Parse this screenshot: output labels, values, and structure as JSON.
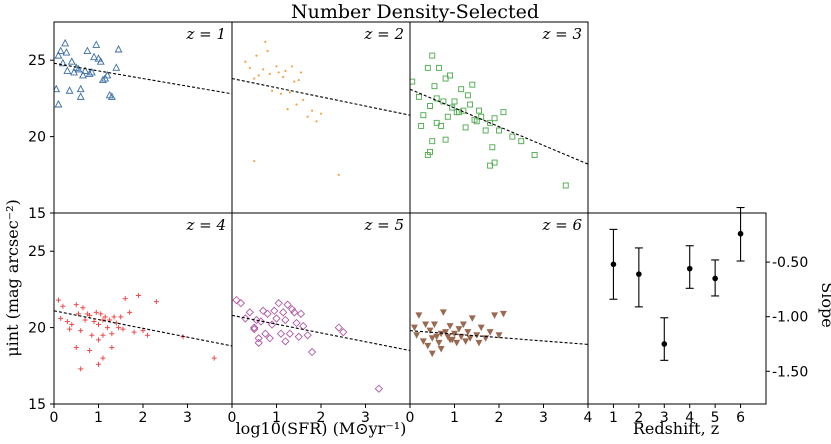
{
  "figure": {
    "title": "Number Density-Selected",
    "ylabel_left": "μint (mag arcsec⁻²)",
    "xlabel_left": "log10(SFR) (M⊙yr⁻¹)",
    "xlabel_right": "Redshift, z",
    "ylabel_right": "Slope"
  },
  "chart_data": [
    {
      "type": "scatter",
      "panel": "z = 1",
      "label": "z = 1",
      "marker": "triangle-up-open",
      "color": "#3a6ea5",
      "xlim": [
        0,
        4
      ],
      "ylim": [
        15,
        27.5
      ],
      "yticks": [
        25,
        20,
        15
      ],
      "xticks": [],
      "points": [
        [
          0.05,
          23.1
        ],
        [
          0.1,
          22.1
        ],
        [
          0.1,
          25.3
        ],
        [
          0.15,
          25.6
        ],
        [
          0.2,
          24.8
        ],
        [
          0.25,
          26.1
        ],
        [
          0.28,
          25.5
        ],
        [
          0.3,
          24.3
        ],
        [
          0.35,
          23.0
        ],
        [
          0.4,
          24.9
        ],
        [
          0.45,
          24.2
        ],
        [
          0.5,
          24.5
        ],
        [
          0.55,
          24.4
        ],
        [
          0.6,
          23.1
        ],
        [
          0.6,
          22.6
        ],
        [
          0.65,
          24.0
        ],
        [
          0.7,
          24.3
        ],
        [
          0.75,
          25.6
        ],
        [
          0.8,
          24.1
        ],
        [
          0.85,
          24.2
        ],
        [
          0.9,
          25.2
        ],
        [
          0.95,
          26.0
        ],
        [
          1.0,
          25.1
        ],
        [
          1.05,
          24.9
        ],
        [
          1.1,
          23.7
        ],
        [
          1.15,
          23.8
        ],
        [
          1.2,
          24.0
        ],
        [
          1.25,
          22.7
        ],
        [
          1.3,
          22.6
        ],
        [
          1.4,
          24.5
        ],
        [
          1.45,
          25.7
        ]
      ],
      "fit": [
        [
          0,
          24.8
        ],
        [
          4,
          22.8
        ]
      ]
    },
    {
      "type": "scatter",
      "panel": "z = 2",
      "label": "z = 2",
      "marker": "dot",
      "color": "#f5a142",
      "xlim": [
        0,
        4
      ],
      "ylim": [
        15,
        27.5
      ],
      "yticks": [],
      "xticks": [],
      "points": [
        [
          0.3,
          24.9
        ],
        [
          0.4,
          24.5
        ],
        [
          0.5,
          23.8
        ],
        [
          0.55,
          25.3
        ],
        [
          0.6,
          24.0
        ],
        [
          0.7,
          24.4
        ],
        [
          0.75,
          26.2
        ],
        [
          0.8,
          25.6
        ],
        [
          0.85,
          24.1
        ],
        [
          0.9,
          23.0
        ],
        [
          1.0,
          24.6
        ],
        [
          1.05,
          24.2
        ],
        [
          1.1,
          22.8
        ],
        [
          1.15,
          23.9
        ],
        [
          1.2,
          24.3
        ],
        [
          1.25,
          21.8
        ],
        [
          1.3,
          22.9
        ],
        [
          1.35,
          24.6
        ],
        [
          1.4,
          23.6
        ],
        [
          1.45,
          22.1
        ],
        [
          1.5,
          23.7
        ],
        [
          1.55,
          24.2
        ],
        [
          1.6,
          22.4
        ],
        [
          1.7,
          21.3
        ],
        [
          1.8,
          21.7
        ],
        [
          1.9,
          21.0
        ],
        [
          2.0,
          21.5
        ],
        [
          0.5,
          18.4
        ],
        [
          2.4,
          17.5
        ]
      ],
      "fit": [
        [
          0,
          23.8
        ],
        [
          4,
          21.4
        ]
      ]
    },
    {
      "type": "scatter",
      "panel": "z = 3",
      "label": "z = 3",
      "marker": "square-open",
      "color": "#4aa84a",
      "xlim": [
        0,
        4
      ],
      "ylim": [
        15,
        27.5
      ],
      "yticks": [],
      "xticks": [],
      "points": [
        [
          0.05,
          23.6
        ],
        [
          0.2,
          22.6
        ],
        [
          0.25,
          20.7
        ],
        [
          0.3,
          21.4
        ],
        [
          0.4,
          24.5
        ],
        [
          0.45,
          22.0
        ],
        [
          0.5,
          25.3
        ],
        [
          0.55,
          23.3
        ],
        [
          0.6,
          22.5
        ],
        [
          0.6,
          20.9
        ],
        [
          0.65,
          24.5
        ],
        [
          0.7,
          20.7
        ],
        [
          0.75,
          22.3
        ],
        [
          0.8,
          23.8
        ],
        [
          0.85,
          21.3
        ],
        [
          0.9,
          24.0
        ],
        [
          0.95,
          21.9
        ],
        [
          1.0,
          22.3
        ],
        [
          1.05,
          21.6
        ],
        [
          1.1,
          21.6
        ],
        [
          1.15,
          23.1
        ],
        [
          1.2,
          21.7
        ],
        [
          1.25,
          20.6
        ],
        [
          1.3,
          22.7
        ],
        [
          1.35,
          22.1
        ],
        [
          1.4,
          23.4
        ],
        [
          1.45,
          21.1
        ],
        [
          1.5,
          21.0
        ],
        [
          1.55,
          21.7
        ],
        [
          1.6,
          21.3
        ],
        [
          1.7,
          20.4
        ],
        [
          1.8,
          20.9
        ],
        [
          1.85,
          19.3
        ],
        [
          1.9,
          21.2
        ],
        [
          2.0,
          20.4
        ],
        [
          2.1,
          21.6
        ],
        [
          2.3,
          20.0
        ],
        [
          2.5,
          19.7
        ],
        [
          0.5,
          19.7
        ],
        [
          0.4,
          18.8
        ],
        [
          0.8,
          19.8
        ],
        [
          0.45,
          19.0
        ],
        [
          1.9,
          18.3
        ],
        [
          1.8,
          18.1
        ],
        [
          3.5,
          16.8
        ],
        [
          2.8,
          18.8
        ]
      ],
      "fit": [
        [
          0,
          23.1
        ],
        [
          4,
          18.2
        ]
      ]
    },
    {
      "type": "scatter",
      "panel": "z = 4",
      "label": "z = 4",
      "marker": "plus",
      "color": "#f04a4a",
      "xlim": [
        0,
        4
      ],
      "ylim": [
        15,
        27.5
      ],
      "yticks": [
        25,
        20,
        15
      ],
      "xticks": [
        0,
        1,
        2,
        3
      ],
      "points": [
        [
          0.1,
          21.8
        ],
        [
          0.15,
          20.6
        ],
        [
          0.2,
          21.4
        ],
        [
          0.3,
          20.4
        ],
        [
          0.35,
          19.9
        ],
        [
          0.4,
          20.2
        ],
        [
          0.5,
          21.5
        ],
        [
          0.55,
          20.9
        ],
        [
          0.6,
          19.8
        ],
        [
          0.65,
          21.3
        ],
        [
          0.7,
          20.5
        ],
        [
          0.75,
          20.9
        ],
        [
          0.8,
          20.8
        ],
        [
          0.85,
          19.5
        ],
        [
          0.9,
          20.4
        ],
        [
          0.95,
          21.0
        ],
        [
          1.0,
          20.2
        ],
        [
          1.0,
          19.2
        ],
        [
          1.05,
          20.9
        ],
        [
          1.1,
          20.5
        ],
        [
          1.1,
          19.5
        ],
        [
          1.15,
          20.7
        ],
        [
          1.2,
          20.0
        ],
        [
          1.25,
          20.5
        ],
        [
          1.3,
          19.6
        ],
        [
          1.3,
          18.7
        ],
        [
          1.35,
          20.7
        ],
        [
          1.4,
          20.3
        ],
        [
          1.45,
          20.0
        ],
        [
          1.5,
          20.7
        ],
        [
          1.55,
          19.9
        ],
        [
          1.6,
          21.9
        ],
        [
          1.7,
          21.0
        ],
        [
          1.8,
          19.7
        ],
        [
          1.9,
          22.1
        ],
        [
          2.0,
          19.8
        ],
        [
          2.1,
          19.5
        ],
        [
          2.3,
          21.7
        ],
        [
          2.9,
          19.4
        ],
        [
          3.6,
          18.0
        ],
        [
          0.5,
          18.7
        ],
        [
          0.8,
          18.5
        ],
        [
          0.6,
          17.3
        ],
        [
          1.0,
          17.6
        ],
        [
          1.1,
          18.0
        ]
      ],
      "fit": [
        [
          0,
          21.1
        ],
        [
          4,
          18.8
        ]
      ]
    },
    {
      "type": "scatter",
      "panel": "z = 5",
      "label": "z = 5",
      "marker": "diamond-open",
      "color": "#b05aa5",
      "xlim": [
        0,
        4
      ],
      "ylim": [
        15,
        27.5
      ],
      "yticks": [],
      "xticks": [
        0,
        1,
        2,
        3
      ],
      "points": [
        [
          0.1,
          21.8
        ],
        [
          0.2,
          21.6
        ],
        [
          0.3,
          20.6
        ],
        [
          0.4,
          21.0
        ],
        [
          0.5,
          20.0
        ],
        [
          0.55,
          20.5
        ],
        [
          0.6,
          19.0
        ],
        [
          0.65,
          20.4
        ],
        [
          0.7,
          21.1
        ],
        [
          0.75,
          19.6
        ],
        [
          0.8,
          20.9
        ],
        [
          0.85,
          19.3
        ],
        [
          0.9,
          20.2
        ],
        [
          0.95,
          21.1
        ],
        [
          1.0,
          20.6
        ],
        [
          1.05,
          21.6
        ],
        [
          1.1,
          19.6
        ],
        [
          1.15,
          21.0
        ],
        [
          1.2,
          20.5
        ],
        [
          1.25,
          21.5
        ],
        [
          1.3,
          19.6
        ],
        [
          1.35,
          21.2
        ],
        [
          1.4,
          21.0
        ],
        [
          1.45,
          20.3
        ],
        [
          1.5,
          19.4
        ],
        [
          1.55,
          20.9
        ],
        [
          1.6,
          20.1
        ],
        [
          1.7,
          19.5
        ],
        [
          1.8,
          18.4
        ],
        [
          2.4,
          20.0
        ],
        [
          2.5,
          19.7
        ],
        [
          3.3,
          16.0
        ],
        [
          0.6,
          19.3
        ],
        [
          0.5,
          19.9
        ],
        [
          1.2,
          19.1
        ]
      ],
      "fit": [
        [
          0,
          20.8
        ],
        [
          4,
          18.5
        ]
      ]
    },
    {
      "type": "scatter",
      "panel": "z = 6",
      "label": "z = 6",
      "marker": "triangle-down-filled",
      "color": "#9a6a50",
      "xlim": [
        0,
        4
      ],
      "ylim": [
        15,
        27.5
      ],
      "yticks": [],
      "xticks": [
        0,
        1,
        2,
        3,
        4
      ],
      "points": [
        [
          0.1,
          20.0
        ],
        [
          0.15,
          19.5
        ],
        [
          0.2,
          20.8
        ],
        [
          0.3,
          19.1
        ],
        [
          0.35,
          20.2
        ],
        [
          0.4,
          18.8
        ],
        [
          0.45,
          19.8
        ],
        [
          0.5,
          19.3
        ],
        [
          0.55,
          20.2
        ],
        [
          0.6,
          19.4
        ],
        [
          0.65,
          19.0
        ],
        [
          0.7,
          19.6
        ],
        [
          0.75,
          21.0
        ],
        [
          0.8,
          19.7
        ],
        [
          0.85,
          19.4
        ],
        [
          0.9,
          20.1
        ],
        [
          0.95,
          19.2
        ],
        [
          1.0,
          19.6
        ],
        [
          1.05,
          19.0
        ],
        [
          1.1,
          19.9
        ],
        [
          1.15,
          19.4
        ],
        [
          1.2,
          20.2
        ],
        [
          1.25,
          19.1
        ],
        [
          1.3,
          19.7
        ],
        [
          1.35,
          19.3
        ],
        [
          1.4,
          20.6
        ],
        [
          1.5,
          19.5
        ],
        [
          1.55,
          19.0
        ],
        [
          1.6,
          20.0
        ],
        [
          1.7,
          19.3
        ],
        [
          1.8,
          19.7
        ],
        [
          1.9,
          20.8
        ],
        [
          2.0,
          19.5
        ],
        [
          2.1,
          20.9
        ],
        [
          0.5,
          18.3
        ],
        [
          0.7,
          18.6
        ],
        [
          0.9,
          19.2
        ]
      ],
      "fit": [
        [
          0,
          19.8
        ],
        [
          4,
          18.9
        ]
      ]
    },
    {
      "type": "errorbar",
      "xlabel": "Redshift, z",
      "ylabel": "Slope",
      "xlim": [
        0,
        7
      ],
      "ylim": [
        -1.8,
        -0.05
      ],
      "xticks": [
        1,
        2,
        3,
        4,
        5,
        6
      ],
      "yticks": [
        -0.5,
        -1.0,
        -1.5
      ],
      "ytick_labels": [
        "-0.50",
        "-1.00",
        "-1.50"
      ],
      "points": [
        {
          "x": 1,
          "y": -0.52,
          "lo": -0.84,
          "hi": -0.2
        },
        {
          "x": 2,
          "y": -0.61,
          "lo": -0.91,
          "hi": -0.37
        },
        {
          "x": 3,
          "y": -1.25,
          "lo": -1.4,
          "hi": -1.01
        },
        {
          "x": 4,
          "y": -0.56,
          "lo": -0.74,
          "hi": -0.35
        },
        {
          "x": 5,
          "y": -0.65,
          "lo": -0.81,
          "hi": -0.48
        },
        {
          "x": 6,
          "y": -0.24,
          "lo": -0.49,
          "hi": 0.0
        }
      ]
    }
  ]
}
